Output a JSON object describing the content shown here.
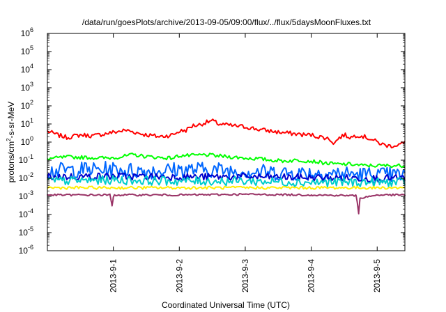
{
  "chart_data": {
    "type": "line",
    "title": "/data/run/goesPlots/archive/2013-09-05/09:00/flux/../flux/5daysMoonFluxes.txt",
    "xlabel": "Coordinated Universal Time (UTC)",
    "ylabel": "protons/cm²-s-sr-MeV",
    "yscale": "log",
    "ylim": [
      1e-06,
      1000000.0
    ],
    "xlim": [
      0.0,
      5.42
    ],
    "x_ticks": [
      {
        "x": 1.0,
        "label": "2013-9-1"
      },
      {
        "x": 2.0,
        "label": "2013-9-2"
      },
      {
        "x": 3.0,
        "label": "2013-9-3"
      },
      {
        "x": 4.0,
        "label": "2013-9-4"
      },
      {
        "x": 5.0,
        "label": "2013-9-5"
      }
    ],
    "y_ticks": [
      {
        "exp": -6,
        "label": "10",
        "sup": "-6"
      },
      {
        "exp": -5,
        "label": "10",
        "sup": "-5"
      },
      {
        "exp": -4,
        "label": "10",
        "sup": "-4"
      },
      {
        "exp": -3,
        "label": "10",
        "sup": "-3"
      },
      {
        "exp": -2,
        "label": "10",
        "sup": "-2"
      },
      {
        "exp": -1,
        "label": "10",
        "sup": "-1"
      },
      {
        "exp": 0,
        "label": "10",
        "sup": "0"
      },
      {
        "exp": 1,
        "label": "10",
        "sup": "1"
      },
      {
        "exp": 2,
        "label": "10",
        "sup": "2"
      },
      {
        "exp": 3,
        "label": "10",
        "sup": "3"
      },
      {
        "exp": 4,
        "label": "10",
        "sup": "4"
      },
      {
        "exp": 5,
        "label": "10",
        "sup": "5"
      },
      {
        "exp": 6,
        "label": "10",
        "sup": "6"
      }
    ],
    "grid": false,
    "legend": "none",
    "series": [
      {
        "color": "#ff0000",
        "noise": 0.12,
        "x": [
          0.0,
          0.15,
          0.3,
          0.5,
          0.7,
          0.9,
          1.1,
          1.2,
          1.4,
          1.5,
          1.7,
          1.9,
          2.0,
          2.1,
          2.2,
          2.3,
          2.4,
          2.5,
          2.6,
          2.7,
          2.8,
          3.0,
          3.2,
          3.4,
          3.5,
          3.7,
          3.9,
          4.0,
          4.1,
          4.2,
          4.3,
          4.35,
          4.4,
          4.5,
          4.6,
          4.7,
          4.8,
          4.9,
          5.0,
          5.1,
          5.2,
          5.3,
          5.42
        ],
        "y": [
          4,
          2.5,
          1.8,
          2.5,
          2.2,
          3,
          4,
          4.5,
          3,
          2.5,
          2,
          2.5,
          4,
          4.5,
          8,
          9,
          12,
          15,
          10,
          9,
          8,
          7,
          5,
          4,
          3.5,
          3,
          2.5,
          2.5,
          2,
          1.8,
          1.3,
          0.8,
          1.5,
          2.5,
          1.8,
          2.5,
          2,
          1.5,
          1,
          0.7,
          0.6,
          0.7,
          0.9
        ]
      },
      {
        "color": "#00ff00",
        "noise": 0.1,
        "x": [
          0.0,
          0.3,
          0.6,
          0.9,
          1.1,
          1.3,
          1.5,
          1.7,
          1.9,
          2.0,
          2.2,
          2.4,
          2.6,
          2.8,
          3.0,
          3.2,
          3.4,
          3.6,
          3.8,
          4.0,
          4.2,
          4.4,
          4.6,
          4.8,
          5.0,
          5.2,
          5.42
        ],
        "y": [
          0.12,
          0.15,
          0.14,
          0.13,
          0.15,
          0.2,
          0.16,
          0.14,
          0.13,
          0.18,
          0.18,
          0.2,
          0.17,
          0.15,
          0.13,
          0.12,
          0.1,
          0.09,
          0.1,
          0.09,
          0.07,
          0.06,
          0.06,
          0.05,
          0.05,
          0.05,
          0.05
        ]
      },
      {
        "color": "#0066ff",
        "noise": 0.45,
        "x": [
          0.0,
          0.5,
          1.0,
          1.5,
          2.0,
          2.5,
          3.0,
          3.5,
          4.0,
          4.5,
          5.0,
          5.42
        ],
        "y": [
          0.025,
          0.03,
          0.03,
          0.025,
          0.03,
          0.03,
          0.025,
          0.02,
          0.02,
          0.018,
          0.015,
          0.015
        ]
      },
      {
        "color": "#0000cc",
        "noise": 0.2,
        "x": [
          0.0,
          1.0,
          2.0,
          3.0,
          4.0,
          5.0,
          5.42
        ],
        "y": [
          0.012,
          0.013,
          0.012,
          0.012,
          0.011,
          0.01,
          0.01
        ]
      },
      {
        "color": "#00cccc",
        "noise": 0.25,
        "x": [
          0.0,
          1.0,
          2.0,
          3.0,
          4.0,
          5.0,
          5.42
        ],
        "y": [
          0.007,
          0.008,
          0.007,
          0.007,
          0.006,
          0.006,
          0.006
        ]
      },
      {
        "color": "#ffee00",
        "noise": 0.08,
        "x": [
          0.0,
          1.0,
          2.0,
          3.0,
          4.0,
          5.0,
          5.42
        ],
        "y": [
          0.003,
          0.003,
          0.003,
          0.003,
          0.003,
          0.003,
          0.003
        ]
      },
      {
        "color": "#993366",
        "noise": 0.05,
        "x": [
          0.0,
          0.95,
          0.97,
          0.98,
          1.0,
          1.02,
          2.0,
          3.0,
          4.0,
          4.68,
          4.7,
          4.72,
          4.74,
          5.0,
          5.42
        ],
        "y": [
          0.0012,
          0.0012,
          0.0005,
          0.0003,
          0.0009,
          0.0012,
          0.0012,
          0.0013,
          0.0012,
          0.0011,
          0.0004,
          0.00012,
          0.0008,
          0.0012,
          0.0012
        ]
      }
    ]
  }
}
